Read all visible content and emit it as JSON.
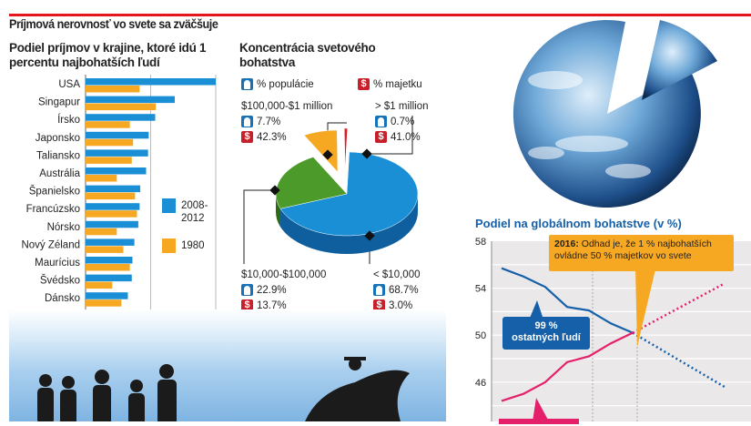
{
  "title": "Príjmová nerovnosť vo svete sa zväčšuje",
  "colors": {
    "accent_red": "#e3161d",
    "blue": "#1a8fd6",
    "orange": "#f7a823",
    "pink": "#e5206b",
    "dark_blue": "#1560a8",
    "green": "#4c9a2a"
  },
  "chart_data": [
    {
      "type": "bar",
      "title": "Podiel príjmov v krajine, ktoré idú 1 percentu najbohatších ľudí",
      "categories": [
        "USA",
        "Singapur",
        "Írsko",
        "Japonsko",
        "Taliansko",
        "Austrália",
        "Španielsko",
        "Francúzsko",
        "Nórsko",
        "Nový Zéland",
        "Maurícius",
        "Švédsko",
        "Dánsko"
      ],
      "series": [
        {
          "name": "2008-2012",
          "values": [
            20.0,
            13.7,
            10.7,
            9.7,
            9.6,
            9.3,
            8.4,
            8.3,
            8.1,
            7.5,
            7.2,
            7.1,
            6.5
          ]
        },
        {
          "name": "1980",
          "values": [
            8.3,
            10.8,
            6.8,
            7.3,
            7.1,
            4.8,
            7.6,
            7.9,
            4.8,
            5.8,
            6.8,
            4.1,
            5.5
          ]
        }
      ],
      "xticks": [
        "0%",
        "10",
        "20"
      ],
      "xlim": [
        0,
        20
      ],
      "legend": [
        "2008-\n2012",
        "1980"
      ],
      "legend_lines": [
        "2008-",
        "2012",
        "1980"
      ]
    },
    {
      "type": "pie",
      "title": "Koncentrácia svetového bohatstva",
      "legend": {
        "population": "% populácie",
        "wealth": "% majetku"
      },
      "slices": [
        {
          "label": "< $10,000",
          "population": "68.7%",
          "wealth": "3.0%",
          "pop_value": 68.7,
          "color": "#1a8fd6"
        },
        {
          "label": "$10,000-$100,000",
          "population": "22.9%",
          "wealth": "13.7%",
          "pop_value": 22.9,
          "color": "#4c9a2a"
        },
        {
          "label": "$100,000-$1 million",
          "population": "7.7%",
          "wealth": "42.3%",
          "pop_value": 7.7,
          "color": "#f7a823"
        },
        {
          "label": "> $1 million",
          "population": "0.7%",
          "wealth": "41.0%",
          "pop_value": 0.7,
          "color": "#e3161d"
        }
      ]
    },
    {
      "type": "line",
      "title": "Podiel na globálnom bohatstve (v %)",
      "ylim": [
        42,
        58
      ],
      "yticks": [
        "58",
        "54",
        "50",
        "46"
      ],
      "x": [
        0,
        1,
        2,
        3,
        4,
        5,
        6
      ],
      "series": [
        {
          "name": "99 % ostatných ľudí",
          "values": [
            55.7,
            55.0,
            54.1,
            52.4,
            52.1,
            51.0,
            50.2
          ],
          "projection": {
            "x": [
              6,
              10.2
            ],
            "values": [
              50.2,
              45.6
            ]
          },
          "color": "#1560a8"
        },
        {
          "name": "1 %",
          "values": [
            44.4,
            45.0,
            46.0,
            47.7,
            48.2,
            49.3,
            50.2
          ],
          "projection": {
            "x": [
              6,
              10.2
            ],
            "values": [
              50.2,
              54.4
            ]
          },
          "color": "#e5206b"
        }
      ],
      "annotation": {
        "year": "2016:",
        "text_line1": "Odhad je, že 1 % najbohatších",
        "text_line2": "ovládne 50 % majetkov vo svete"
      },
      "blue_label": {
        "line1": "99 %",
        "line2": "ostatných ľudí"
      }
    }
  ]
}
